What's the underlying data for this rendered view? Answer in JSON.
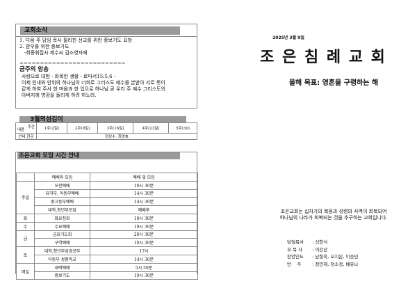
{
  "news": {
    "title": "교회소식",
    "lines": [
      "1. 다음 주 담임 목사 필리핀 선교를 위한 중보기도 요청",
      "2. 환우를 위한 중보기도",
      "-최동휘집사 제수씨 김소영자매"
    ],
    "divider": "==========================",
    "verse_title": "금주의 암송",
    "verse_lines": [
      "사랑으로 대함 - 화목한 생활 - 로마서15:5,6 -",
      "이제 인내와 안위의 하나님이 너희로 그리스도 예수를 본받아 서로 뜻이",
      "같게 하여 주사 한 마음과 한 입으로 하나님 곧 우리 주 예수 그리스도의",
      "아버지께 영광을 돌리게 하려 하노라."
    ]
  },
  "duty": {
    "title": "3월의섬김이",
    "corner_top": "주간",
    "corner_bottom": "내용",
    "weeks": [
      "1주(2일)",
      "2주(9일)",
      "3주(16일)",
      "4주(23일)",
      "5주(30)"
    ],
    "row_label": "안내,헌금",
    "row_value": "정상수, 최영호"
  },
  "meetings": {
    "title": "조은교회 모임 시간 안내",
    "headers": [
      "",
      "예배와 모임",
      "예배 및 모임"
    ],
    "rows": [
      {
        "day": "주일",
        "span": 4,
        "name": "오전예배",
        "time": "10시 30분"
      },
      {
        "name": "유치부, 아동부예배",
        "time": "14시 30분"
      },
      {
        "name": "중고등부예배",
        "time": "14시 30분"
      },
      {
        "name": "대학,청년부모임",
        "time": "예배후"
      },
      {
        "day": "화",
        "span": 1,
        "name": "화요집회",
        "time": "10시 30분"
      },
      {
        "day": "수",
        "span": 1,
        "name": "수요예배",
        "time": "19시 30분"
      },
      {
        "day": "금",
        "span": 2,
        "name": "금요기도회",
        "time": "20시 30분"
      },
      {
        "name": "구역예배",
        "time": "10시 30분"
      },
      {
        "day": "토",
        "span": 2,
        "name": "대학,청년부성경공부",
        "time": "17시"
      },
      {
        "name": "아동부 성품학교",
        "time": "14시 30분"
      },
      {
        "day": "매일",
        "span": 2,
        "name": "새벽예배",
        "time": "5시 30분"
      },
      {
        "name": "중보기도",
        "time": "10시 30분"
      }
    ]
  },
  "cover": {
    "date": "2025년 3월 9일",
    "church_name": "조 은 침 례 교 회",
    "goal": "올해 목표: 영혼을 구령하는 해",
    "mission": [
      "조은교회는 십자가의 복음과 성령의 사역이 회복되어",
      "하나님의 나라가 회복되는 것을 추구하는 교회입니다."
    ],
    "staff": [
      {
        "role": "담임목사",
        "name": "신한식"
      },
      {
        "role": "부 목 사",
        "name": "이강산"
      },
      {
        "role": "찬양인도",
        "name": "남철욱, 오지은, 이승민"
      },
      {
        "role": "반    주",
        "name": "정민재, 정소정, 배유나"
      }
    ]
  }
}
